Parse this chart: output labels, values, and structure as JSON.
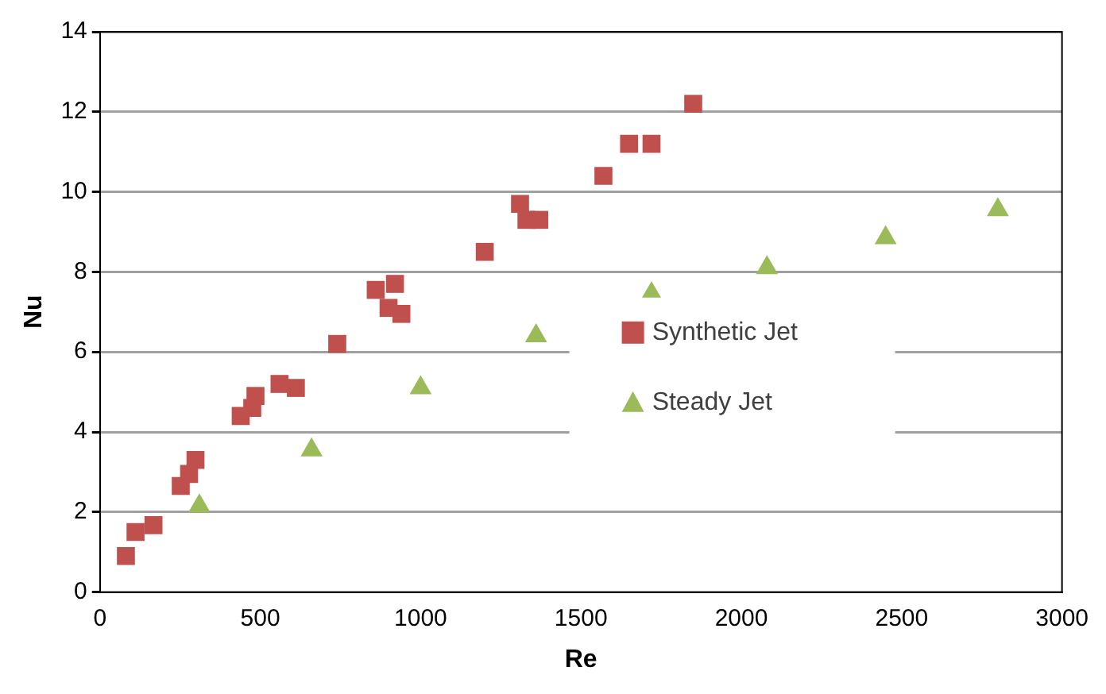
{
  "chart_data": {
    "type": "scatter",
    "xlabel": "Re",
    "ylabel": "Nu",
    "xlim": [
      0,
      3000
    ],
    "xticks": [
      0,
      500,
      1000,
      1500,
      2000,
      2500,
      3000
    ],
    "ylim": [
      0,
      14
    ],
    "yticks": [
      0,
      2,
      4,
      6,
      8,
      10,
      12,
      14
    ],
    "grid": "y",
    "legend": "right",
    "series": [
      {
        "name": "Synthetic Jet",
        "color": "#c0504d",
        "marker": "square",
        "x": [
          81,
          111,
          167,
          252,
          278,
          298,
          439,
          475,
          485,
          560,
          611,
          740,
          860,
          920,
          900,
          940,
          1200,
          1310,
          1330,
          1370,
          1570,
          1650,
          1720,
          1850
        ],
        "values": [
          0.9,
          1.5,
          1.67,
          2.65,
          2.95,
          3.3,
          4.4,
          4.6,
          4.9,
          5.2,
          5.1,
          6.2,
          7.55,
          7.7,
          7.1,
          6.95,
          8.5,
          9.7,
          9.3,
          9.3,
          10.4,
          11.2,
          11.2,
          12.2
        ]
      },
      {
        "name": "Steady Jet",
        "color": "#9bbb59",
        "marker": "triangle",
        "x": [
          310,
          660,
          1000,
          1360,
          1720,
          2080,
          2450,
          2800
        ],
        "values": [
          2.15,
          3.55,
          5.1,
          6.4,
          7.45,
          8.1,
          8.85,
          9.55
        ]
      }
    ]
  }
}
